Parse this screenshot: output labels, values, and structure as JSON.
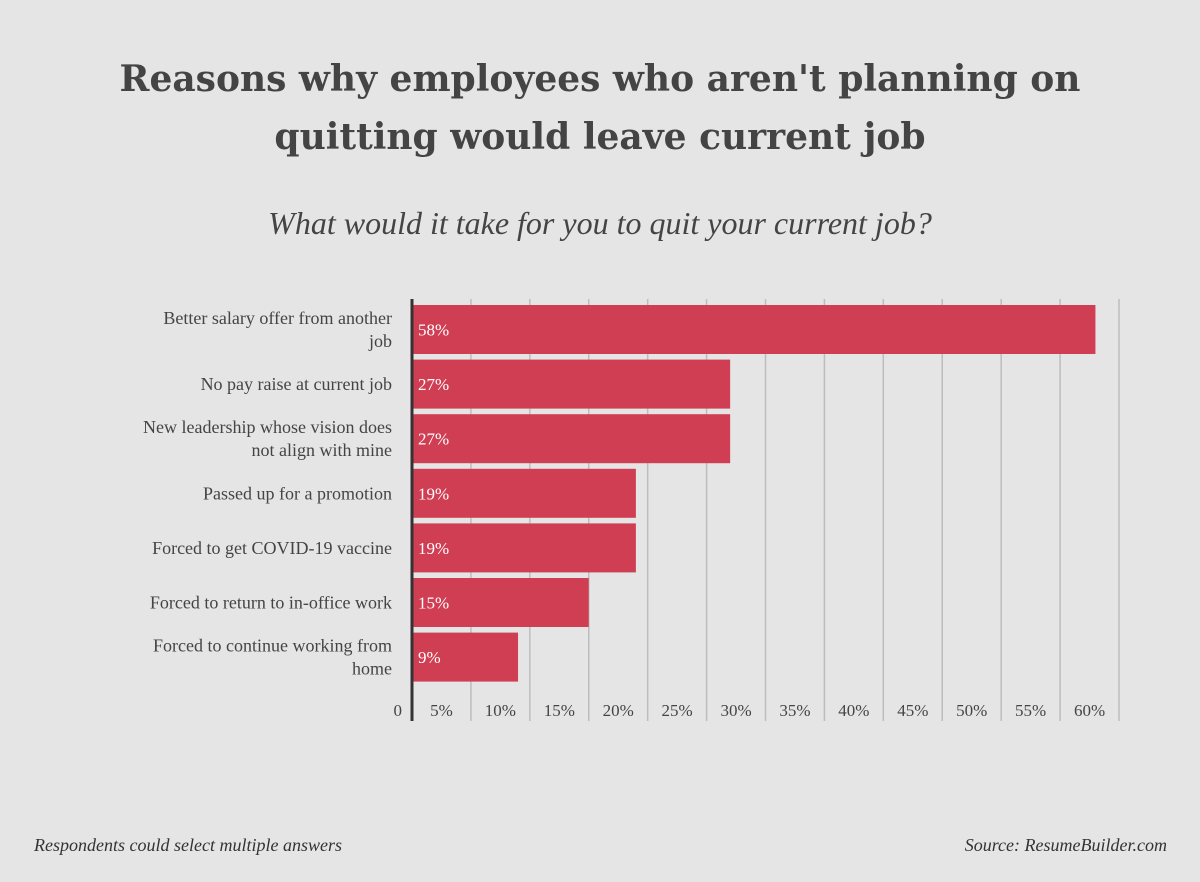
{
  "header": {
    "title": "Reasons why employees who aren't planning on quitting would leave current job",
    "subtitle": "What would it take for you to quit your current job?"
  },
  "footer": {
    "note": "Respondents could select multiple answers",
    "source": "Source: ResumeBuilder.com"
  },
  "colors": {
    "bar": "#d03e54",
    "grid": "#bdbdbd",
    "axis": "#333333",
    "text": "#444444",
    "background": "#e5e5e5"
  },
  "chart_data": {
    "type": "bar",
    "orientation": "horizontal",
    "categories": [
      "Better salary offer from another job",
      "No pay raise at current job",
      "New leadership whose vision does not align with mine",
      "Passed up for a promotion",
      "Forced to get COVID-19 vaccine",
      "Forced to return to in-office work",
      "Forced to continue working from home"
    ],
    "values": [
      58,
      27,
      27,
      19,
      19,
      15,
      9
    ],
    "data_labels": [
      "58%",
      "27%",
      "27%",
      "19%",
      "19%",
      "15%",
      "9%"
    ],
    "xlim": [
      0,
      60
    ],
    "x_ticks": [
      0,
      5,
      10,
      15,
      20,
      25,
      30,
      35,
      40,
      45,
      50,
      55,
      60
    ],
    "x_tick_labels": [
      "0",
      "5%",
      "10%",
      "15%",
      "20%",
      "25%",
      "30%",
      "35%",
      "40%",
      "45%",
      "50%",
      "55%",
      "60%"
    ],
    "grid": true,
    "legend": "none"
  }
}
